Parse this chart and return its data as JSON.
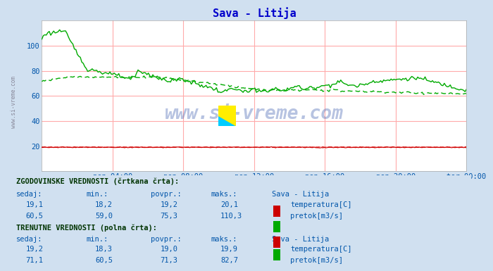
{
  "title": "Sava - Litija",
  "title_color": "#0000cc",
  "bg_color": "#d0e0f0",
  "plot_bg_color": "#ffffff",
  "grid_color_major": "#ffaaaa",
  "grid_color_minor": "#ffe8e8",
  "watermark": "www.si-vreme.com",
  "ylim": [
    0,
    120
  ],
  "yticks": [
    20,
    40,
    60,
    80,
    100
  ],
  "xlabel_ticks": [
    "pon 04:00",
    "pon 08:00",
    "pon 12:00",
    "pon 16:00",
    "pon 20:00",
    "tor 00:00"
  ],
  "n_points": 288,
  "temp_color": "#cc0000",
  "flow_color": "#00aa00",
  "text_color": "#0055aa",
  "header_color": "#003300",
  "side_label": "www.si-vreme.com",
  "hist_header": "ZGODOVINSKE VREDNOSTI (črtkana črta):",
  "curr_header": "TRENUTNE VREDNOSTI (polna črta):",
  "col_headers": [
    "sedaj:",
    "min.:",
    "povpr.:",
    "maks.:",
    "Sava - Litija"
  ],
  "hist_temp_vals": [
    "19,1",
    "18,2",
    "19,2",
    "20,1"
  ],
  "hist_flow_vals": [
    "60,5",
    "59,0",
    "75,3",
    "110,3"
  ],
  "curr_temp_vals": [
    "19,2",
    "18,3",
    "19,0",
    "19,9"
  ],
  "curr_flow_vals": [
    "71,1",
    "60,5",
    "71,3",
    "82,7"
  ],
  "temp_label": "temperatura[C]",
  "flow_label": "pretok[m3/s]"
}
